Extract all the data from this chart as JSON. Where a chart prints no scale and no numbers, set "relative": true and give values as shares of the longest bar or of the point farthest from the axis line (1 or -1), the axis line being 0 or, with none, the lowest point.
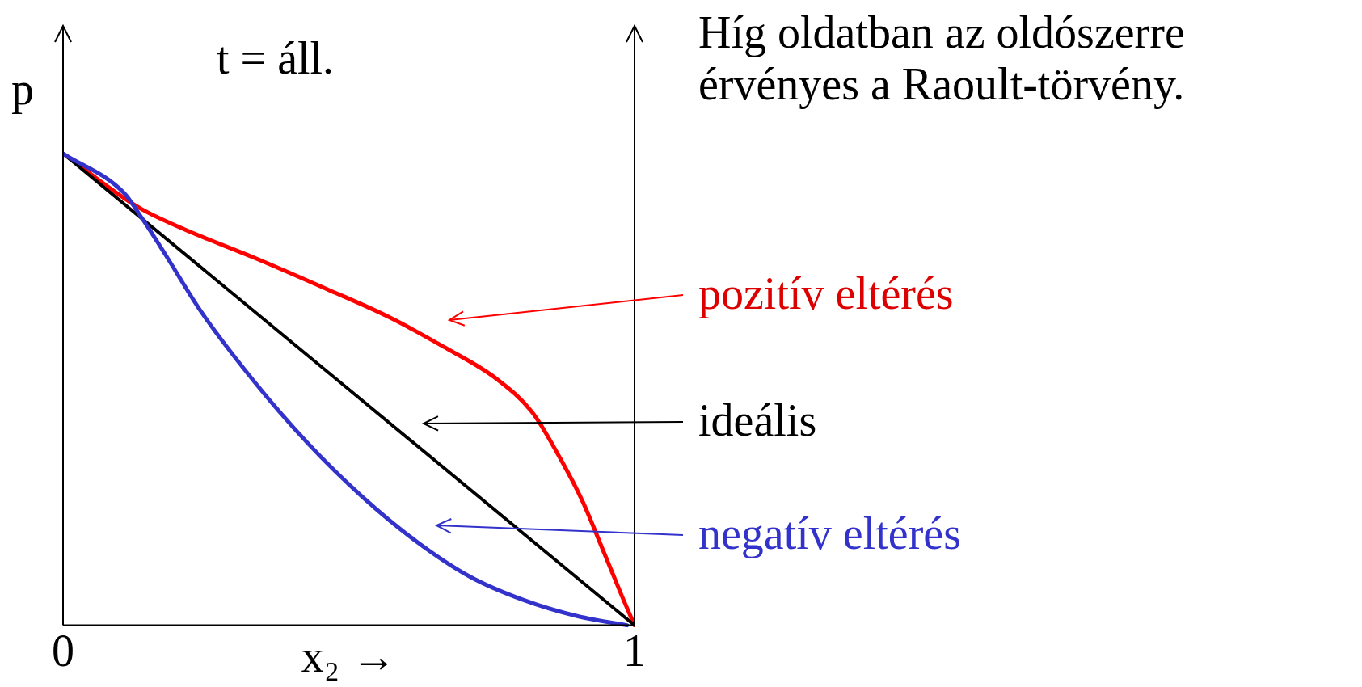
{
  "chart_data": {
    "type": "line",
    "title": "Híg oldatban az oldószerre érvényes a Raoult-törvény.",
    "xlabel": "x₂ →",
    "ylabel": "p",
    "annotations": [
      "t = áll."
    ],
    "relative": true,
    "xlim": [
      0,
      1
    ],
    "xticks": [
      0,
      1
    ],
    "grid": false,
    "legend": false,
    "marker": "none",
    "line_style": "solid",
    "series": [
      {
        "name": "pozitív eltérés",
        "color": "#ff0000",
        "x": [
          0,
          0.1305,
          0.209,
          0.335,
          0.461,
          0.571,
          0.665,
          0.759,
          0.822,
          0.869,
          0.909,
          0.948,
          0.98,
          1
        ],
        "values": [
          1,
          0.887,
          0.841,
          0.779,
          0.713,
          0.653,
          0.591,
          0.522,
          0.45,
          0.356,
          0.263,
          0.15,
          0.056,
          0
        ]
      },
      {
        "name": "ideális",
        "color": "#000000",
        "x": [
          0,
          1
        ],
        "values": [
          1,
          0
        ]
      },
      {
        "name": "negatív eltérés",
        "color": "#3333cc",
        "x": [
          0,
          0.107,
          0.138,
          0.178,
          0.241,
          0.335,
          0.429,
          0.524,
          0.618,
          0.712,
          0.807,
          0.901,
          0.987
        ],
        "values": [
          1,
          0.916,
          0.863,
          0.788,
          0.666,
          0.516,
          0.385,
          0.272,
          0.178,
          0.103,
          0.053,
          0.019,
          0
        ]
      }
    ]
  }
}
